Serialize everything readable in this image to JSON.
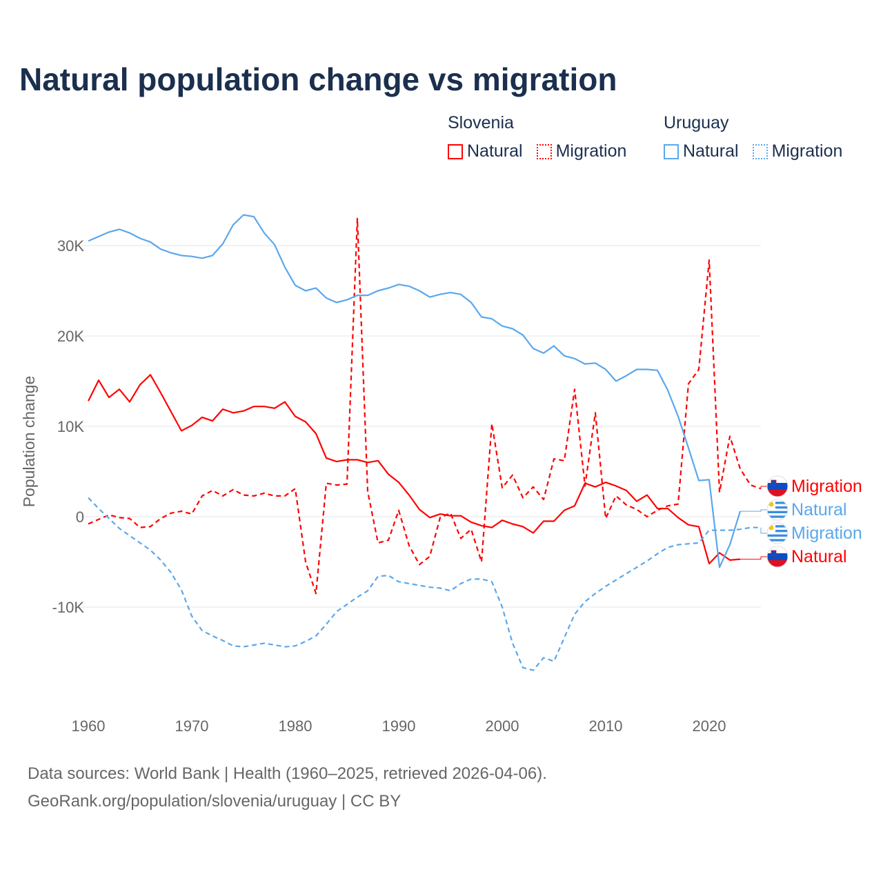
{
  "chart_data": {
    "type": "line",
    "title": "Natural population change vs migration",
    "xlabel": "",
    "ylabel": "Population change",
    "xlim": [
      1960,
      2025
    ],
    "ylim": [
      -20000,
      34000
    ],
    "x_ticks": [
      1960,
      1970,
      1980,
      1990,
      2000,
      2010,
      2020
    ],
    "x_tick_labels": [
      "1960",
      "1970",
      "1980",
      "1990",
      "2000",
      "2010",
      "2020"
    ],
    "y_ticks": [
      -10000,
      0,
      10000,
      20000,
      30000
    ],
    "y_tick_labels": [
      "-10K",
      "0",
      "10K",
      "20K",
      "30K"
    ],
    "grid": true,
    "legend": {
      "placement": "top-right",
      "groups": [
        {
          "country": "Slovenia",
          "items": [
            "Natural",
            "Migration"
          ]
        },
        {
          "country": "Uruguay",
          "items": [
            "Natural",
            "Migration"
          ]
        }
      ]
    },
    "series": [
      {
        "name": "Slovenia Natural",
        "country": "Slovenia",
        "kind": "Natural",
        "color": "#ff0000",
        "dashed": false,
        "end_label": "Natural",
        "start_year": 1960,
        "values": [
          12800,
          15100,
          13200,
          14100,
          12700,
          14600,
          15700,
          13700,
          11600,
          9500,
          10100,
          11000,
          10600,
          11900,
          11500,
          11700,
          12200,
          12200,
          12000,
          12700,
          11100,
          10500,
          9200,
          6500,
          6100,
          6300,
          6300,
          6000,
          6200,
          4700,
          3800,
          2400,
          800,
          -100,
          300,
          100,
          100,
          -600,
          -1000,
          -1200,
          -400,
          -800,
          -1100,
          -1800,
          -500,
          -500,
          700,
          1200,
          3700,
          3300,
          3800,
          3400,
          2900,
          1700,
          2400,
          900,
          900,
          -100,
          -900,
          -1100,
          -5200,
          -4000,
          -4800,
          -4700
        ]
      },
      {
        "name": "Slovenia Migration",
        "country": "Slovenia",
        "kind": "Migration",
        "color": "#ff0000",
        "dashed": true,
        "end_label": "Migration",
        "start_year": 1960,
        "values": [
          -800,
          -300,
          200,
          -100,
          -200,
          -1200,
          -1100,
          -200,
          400,
          600,
          300,
          2300,
          2900,
          2300,
          3000,
          2400,
          2300,
          2600,
          2300,
          2300,
          3100,
          -5000,
          -8500,
          3700,
          3500,
          3600,
          33000,
          2800,
          -2900,
          -2600,
          700,
          -3200,
          -5300,
          -4400,
          -100,
          400,
          -2400,
          -1400,
          -5000,
          10300,
          3200,
          4600,
          2100,
          3300,
          1900,
          6400,
          6200,
          14100,
          3400,
          11500,
          -200,
          2300,
          1300,
          800,
          0,
          700,
          1200,
          1400,
          14700,
          16300,
          28400,
          2700,
          8900,
          5300,
          3500,
          3100
        ]
      },
      {
        "name": "Uruguay Natural",
        "country": "Uruguay",
        "kind": "Natural",
        "color": "#5aa7ec",
        "dashed": false,
        "end_label": "Natural",
        "start_year": 1960,
        "values": [
          30500,
          31000,
          31500,
          31800,
          31400,
          30800,
          30400,
          29600,
          29200,
          28900,
          28800,
          28600,
          28900,
          30200,
          32300,
          33400,
          33200,
          31400,
          30100,
          27600,
          25600,
          25000,
          25300,
          24200,
          23700,
          24000,
          24500,
          24500,
          25000,
          25300,
          25700,
          25500,
          25000,
          24300,
          24600,
          24800,
          24600,
          23700,
          22100,
          21900,
          21100,
          20800,
          20100,
          18600,
          18100,
          18900,
          17800,
          17500,
          16900,
          17000,
          16300,
          15000,
          15600,
          16300,
          16300,
          16200,
          14000,
          11100,
          7600,
          4000,
          4100,
          -5600,
          -3100,
          600
        ]
      },
      {
        "name": "Uruguay Migration",
        "country": "Uruguay",
        "kind": "Migration",
        "color": "#5aa7ec",
        "dashed": true,
        "end_label": "Migration",
        "start_year": 1960,
        "values": [
          2100,
          900,
          -200,
          -1300,
          -2100,
          -2900,
          -3700,
          -4800,
          -6200,
          -8100,
          -11000,
          -12600,
          -13200,
          -13700,
          -14300,
          -14400,
          -14200,
          -14000,
          -14200,
          -14400,
          -14300,
          -13800,
          -13200,
          -11900,
          -10500,
          -9700,
          -8900,
          -8200,
          -6600,
          -6500,
          -7200,
          -7400,
          -7600,
          -7800,
          -7900,
          -8200,
          -7400,
          -6900,
          -6900,
          -7200,
          -10000,
          -14000,
          -16700,
          -17000,
          -15600,
          -16000,
          -13400,
          -10800,
          -9400,
          -8500,
          -7700,
          -7000,
          -6300,
          -5600,
          -4900,
          -4100,
          -3400,
          -3100,
          -3000,
          -2900,
          -1500,
          -1500,
          -1500,
          -1400,
          -1200,
          -1200
        ]
      }
    ],
    "end_label_order": [
      1,
      2,
      3,
      0
    ]
  },
  "colors": {
    "slovenia": "#ff0000",
    "uruguay": "#5aa7ec",
    "title": "#1b2f4e"
  },
  "footer": {
    "line1": "Data sources: World Bank | Health (1960–2025, retrieved 2026-04-06).",
    "line2": "GeoRank.org/population/slovenia/uruguay | CC BY"
  }
}
